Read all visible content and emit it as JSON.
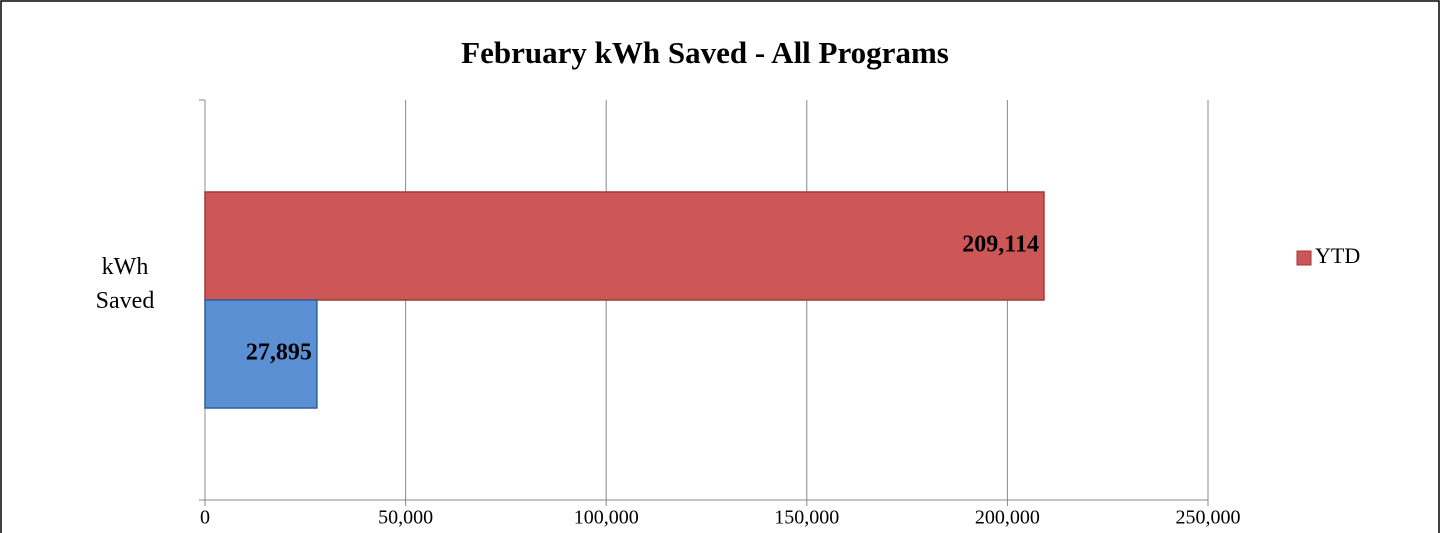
{
  "chart_data": {
    "type": "bar",
    "orientation": "horizontal",
    "title": "February kWh Saved - All Programs",
    "categories": [
      "kWh Saved"
    ],
    "series": [
      {
        "name": "YTD",
        "color": "#cd5656",
        "values": [
          209114
        ],
        "value_labels": [
          "209,114"
        ]
      },
      {
        "color": "#5b8fd4",
        "values": [
          27895
        ],
        "value_labels": [
          "27,895"
        ]
      }
    ],
    "xlim": [
      0,
      250000
    ],
    "xticks": [
      0,
      {
        "value": 50000,
        "label": "50,000"
      },
      {
        "value": 100000,
        "label": "100,000"
      },
      {
        "value": 150000,
        "label": "150,000"
      },
      {
        "value": 200000,
        "label": "200,000"
      },
      {
        "value": 250000,
        "label": "250,000"
      }
    ],
    "grid": true,
    "legend": "right"
  }
}
